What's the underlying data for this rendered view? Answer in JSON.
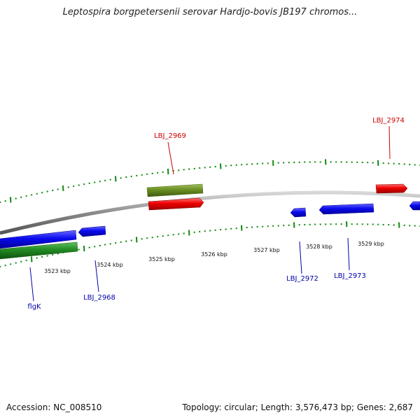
{
  "title": "Leptospira borgpetersenii serovar Hardjo-bovis JB197 chromos...",
  "footer": {
    "accession": "Accession: NC_008510",
    "summary": "Topology: circular; Length: 3,576,473 bp; Genes: 2,687"
  },
  "colors": {
    "forward_gene": "#ee0000",
    "reverse_gene": "#0000ee",
    "forward_feature": "#6b8e23",
    "reverse_feature": "#228b22",
    "backbone": "#808080",
    "ticks": "#118811",
    "forward_label": "#cc0000",
    "reverse_label": "#0000aa"
  },
  "scale_labels": [
    "3523 kbp",
    "3524 kbp",
    "3525 kbp",
    "3526 kbp",
    "3527 kbp",
    "3528 kbp",
    "3529 kbp"
  ],
  "gene_labels": {
    "forward": [
      "LBJ_2969",
      "LBJ_2974"
    ],
    "reverse": [
      "flgK",
      "LBJ_2968",
      "LBJ_2972",
      "LBJ_2973"
    ]
  }
}
